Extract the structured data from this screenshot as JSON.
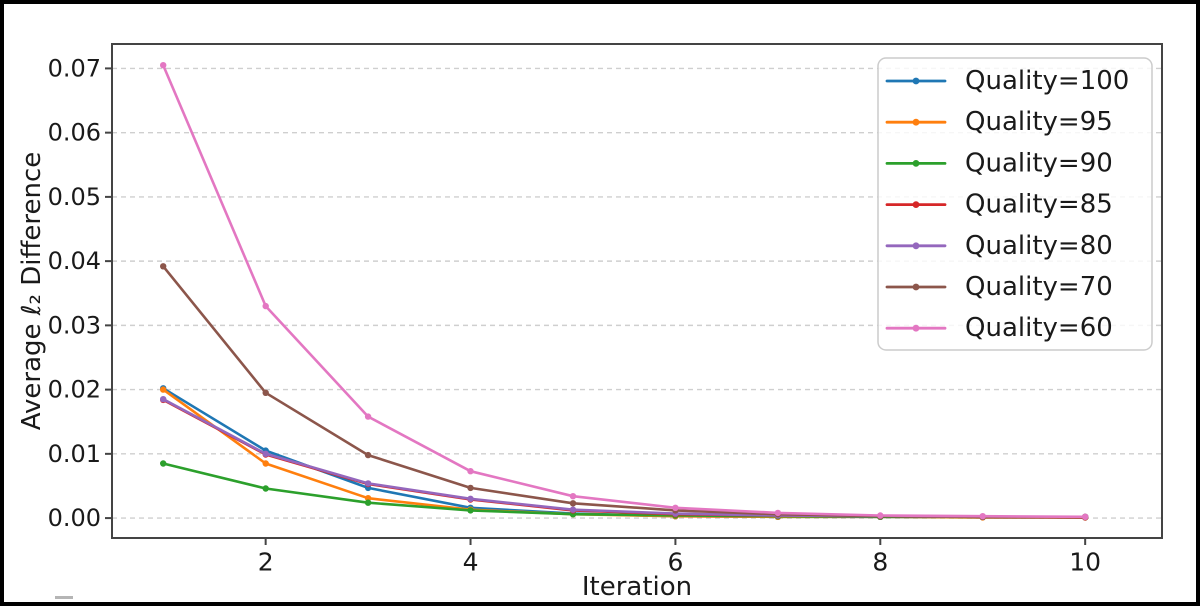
{
  "figure": {
    "background": "#ffffff",
    "frame_color": "#000000",
    "spine_color": "#444444",
    "grid_color": "#cfcfcf",
    "legend_border_color": "#cccccc"
  },
  "chart_data": {
    "type": "line",
    "title": "",
    "xlabel": "Iteration",
    "ylabel": "Average ℓ₂ Difference",
    "x": [
      1,
      2,
      3,
      4,
      5,
      6,
      7,
      8,
      9,
      10
    ],
    "xticks": [
      2,
      4,
      6,
      8,
      10
    ],
    "yticks": [
      0.0,
      0.01,
      0.02,
      0.03,
      0.04,
      0.05,
      0.06,
      0.07
    ],
    "ytick_labels": [
      "0.00",
      "0.01",
      "0.02",
      "0.03",
      "0.04",
      "0.05",
      "0.06",
      "0.07"
    ],
    "xlim": [
      0.5,
      10.75
    ],
    "ylim": [
      -0.0031,
      0.0738
    ],
    "grid": "horizontal-dashed",
    "legend_position": "upper-right",
    "marker": "dot",
    "series": [
      {
        "name": "Quality=100",
        "color": "#1f77b4",
        "values": [
          0.0202,
          0.0105,
          0.0047,
          0.0016,
          0.0007,
          0.0003,
          0.0002,
          0.0002,
          0.0001,
          0.0001
        ]
      },
      {
        "name": "Quality=95",
        "color": "#ff7f0e",
        "values": [
          0.02,
          0.0085,
          0.0031,
          0.0013,
          0.0006,
          0.0003,
          0.0002,
          0.0002,
          0.0001,
          0.0001
        ]
      },
      {
        "name": "Quality=90",
        "color": "#2ca02c",
        "values": [
          0.0085,
          0.0046,
          0.0024,
          0.0012,
          0.0006,
          0.0004,
          0.0003,
          0.0002,
          0.0002,
          0.0001
        ]
      },
      {
        "name": "Quality=85",
        "color": "#d62728",
        "values": [
          0.0184,
          0.0099,
          0.0053,
          0.0029,
          0.0012,
          0.0006,
          0.0004,
          0.0003,
          0.0002,
          0.0001
        ]
      },
      {
        "name": "Quality=80",
        "color": "#9467bd",
        "values": [
          0.0185,
          0.01,
          0.0054,
          0.003,
          0.0013,
          0.0007,
          0.0004,
          0.0003,
          0.0002,
          0.0002
        ]
      },
      {
        "name": "Quality=70",
        "color": "#8c564b",
        "values": [
          0.0392,
          0.0195,
          0.0098,
          0.0047,
          0.0023,
          0.0012,
          0.0006,
          0.0003,
          0.0002,
          0.0002
        ]
      },
      {
        "name": "Quality=60",
        "color": "#e377c2",
        "values": [
          0.0705,
          0.033,
          0.0158,
          0.0073,
          0.0034,
          0.0016,
          0.0008,
          0.0004,
          0.0003,
          0.0002
        ]
      }
    ]
  }
}
